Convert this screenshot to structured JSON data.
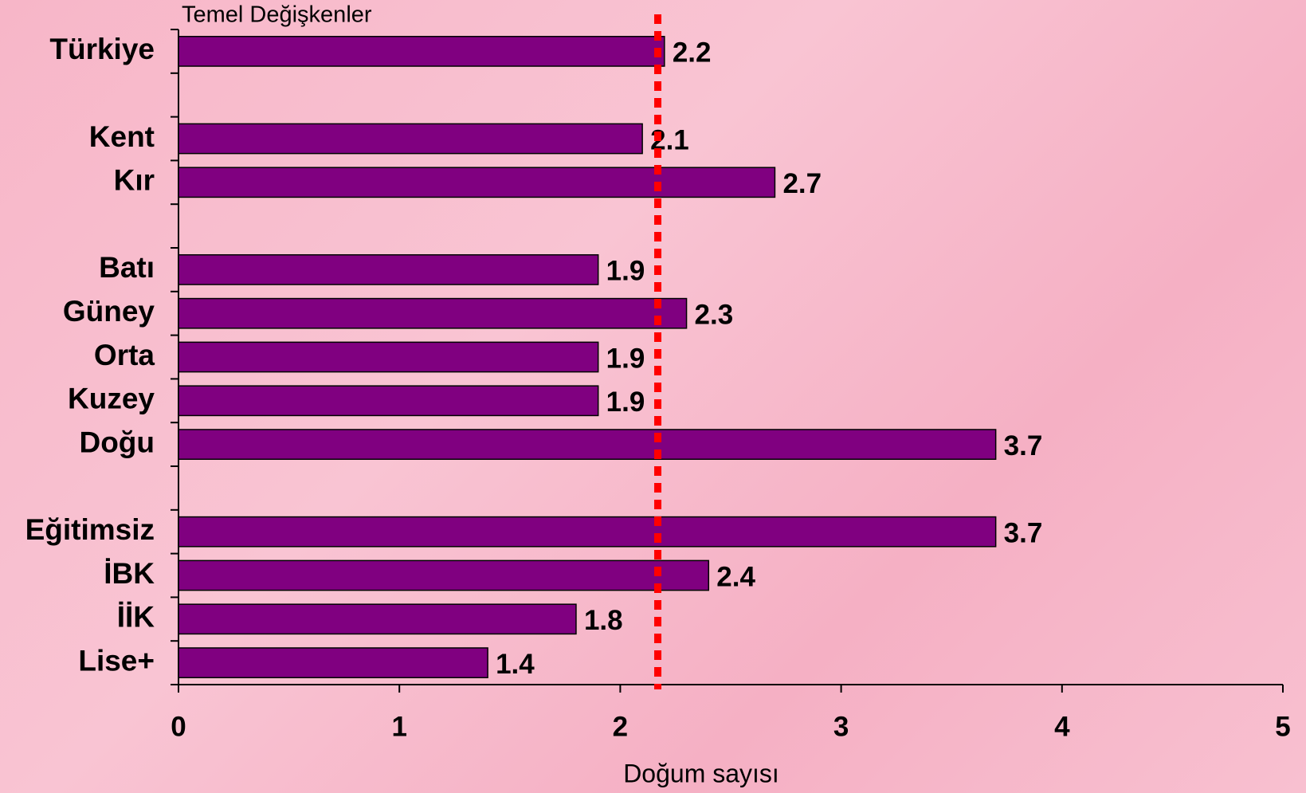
{
  "chart_data": {
    "type": "bar",
    "orientation": "horizontal",
    "title": "Temel Değişkenler",
    "x_label": "Doğum sayısı",
    "categories": [
      "Türkiye",
      null,
      "Kent",
      "Kır",
      null,
      "Batı",
      "Güney",
      "Orta",
      "Kuzey",
      "Doğu",
      null,
      "Eğitimsiz",
      "İBK",
      "İİK",
      "Lise+"
    ],
    "values": [
      2.2,
      null,
      2.1,
      2.7,
      null,
      1.9,
      2.3,
      1.9,
      1.9,
      3.7,
      null,
      3.7,
      2.4,
      1.8,
      1.4
    ],
    "color": "#800080",
    "xlim": [
      0,
      5
    ],
    "xticks": [
      0,
      1,
      2,
      3,
      4,
      5
    ],
    "reference_line": {
      "value": 2.17,
      "color": "#ff0000"
    }
  }
}
